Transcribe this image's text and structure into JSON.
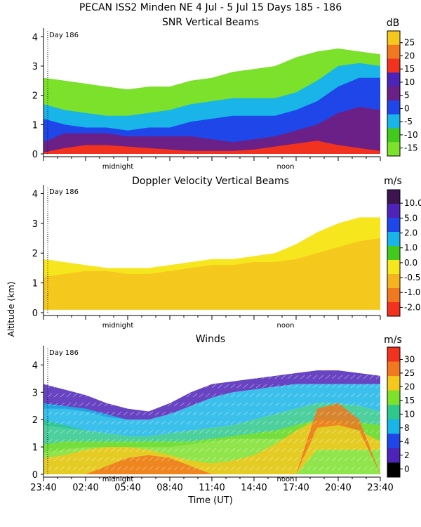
{
  "header": "PECAN ISS2 Minden NE    4 Jul -  5 Jul 15 Days 185 - 186",
  "day_marker": "Day 186",
  "xlabel": "Time (UT)",
  "ylabel": "Altitude (km)",
  "midnight_label": "midnight",
  "noon_label": "noon",
  "colors": {
    "lime": "#7be12b",
    "green": "#43c91e",
    "cyan": "#19b4e8",
    "blue": "#1f46e8",
    "indigo": "#4d23b8",
    "purple": "#6b2088",
    "red": "#f0321e",
    "orange": "#f0781e",
    "yellow": "#f5e61e",
    "gold": "#f5c81e"
  },
  "chart_data": [
    {
      "type": "heatmap",
      "title": "SNR Vertical Beams",
      "units": "dB",
      "ylim": [
        0,
        4.2
      ],
      "yticks": [
        0,
        1,
        2,
        3,
        4
      ],
      "colorbar": {
        "labels": [
          "25",
          "20",
          "15",
          "10",
          "5",
          "0",
          "-5",
          "-10",
          "-15"
        ],
        "colors": [
          "#f5c81e",
          "#f0781e",
          "#f0321e",
          "#4d23b8",
          "#6b2088",
          "#1f46e8",
          "#19b4e8",
          "#43c91e",
          "#7be12b"
        ]
      },
      "layers": [
        {
          "color": "#7be12b",
          "top": [
            2.6,
            2.5,
            2.4,
            2.3,
            2.2,
            2.3,
            2.3,
            2.5,
            2.6,
            2.8,
            2.9,
            3.0,
            3.3,
            3.5,
            3.6,
            3.5,
            3.4
          ],
          "bottom": [
            0,
            0,
            0,
            0,
            0,
            0,
            0,
            0,
            0,
            0,
            0,
            0,
            0,
            0,
            0,
            0,
            0
          ]
        },
        {
          "color": "#19b4e8",
          "top": [
            1.7,
            1.5,
            1.4,
            1.3,
            1.3,
            1.4,
            1.5,
            1.7,
            1.8,
            1.9,
            1.9,
            1.9,
            2.1,
            2.5,
            3.0,
            3.1,
            3.0
          ],
          "bottom": [
            0,
            0,
            0,
            0,
            0,
            0,
            0,
            0,
            0,
            0,
            0,
            0,
            0,
            0,
            0,
            0,
            0
          ]
        },
        {
          "color": "#1f46e8",
          "top": [
            1.2,
            1.0,
            0.9,
            0.9,
            0.8,
            0.9,
            0.9,
            1.1,
            1.2,
            1.3,
            1.3,
            1.3,
            1.5,
            1.8,
            2.3,
            2.6,
            2.6
          ],
          "bottom": [
            0,
            0,
            0,
            0,
            0,
            0,
            0,
            0,
            0,
            0,
            0,
            0,
            0,
            0,
            0,
            0,
            0
          ]
        },
        {
          "color": "#6b2088",
          "top": [
            0.4,
            0.7,
            0.7,
            0.7,
            0.6,
            0.6,
            0.6,
            0.6,
            0.5,
            0.4,
            0.5,
            0.6,
            0.8,
            1.0,
            1.4,
            1.6,
            1.5
          ],
          "bottom": [
            0,
            0,
            0,
            0,
            0,
            0,
            0,
            0,
            0,
            0,
            0,
            0,
            0,
            0,
            0,
            0,
            0
          ]
        },
        {
          "color": "#f0321e",
          "top": [
            0.05,
            0.2,
            0.3,
            0.3,
            0.25,
            0.2,
            0.15,
            0.1,
            0.1,
            0.1,
            0.15,
            0.25,
            0.35,
            0.45,
            0.3,
            0.2,
            0.1
          ],
          "bottom": [
            0,
            0,
            0,
            0,
            0,
            0,
            0,
            0,
            0,
            0,
            0,
            0,
            0,
            0,
            0,
            0,
            0
          ]
        }
      ]
    },
    {
      "type": "heatmap",
      "title": "Doppler Velocity Vertical Beams",
      "units": "m/s",
      "ylim": [
        0,
        4.2
      ],
      "yticks": [
        0,
        1,
        2,
        3,
        4
      ],
      "colorbar": {
        "labels": [
          "10.0",
          "5.0",
          "2.0",
          "1.0",
          "0.0",
          "-0.5",
          "-1.0",
          "-2.0"
        ],
        "colors": [
          "#3c1450",
          "#4d23b8",
          "#1f46e8",
          "#19b4e8",
          "#43c91e",
          "#f5e61e",
          "#f5b41e",
          "#f0781e",
          "#f0321e"
        ]
      },
      "layers": [
        {
          "color": "#f5e61e",
          "top": [
            1.8,
            1.7,
            1.6,
            1.5,
            1.5,
            1.5,
            1.6,
            1.7,
            1.8,
            1.8,
            1.9,
            2.0,
            2.3,
            2.7,
            3.0,
            3.2,
            3.2
          ],
          "bottom": [
            0.1,
            0.1,
            0.1,
            0.1,
            0.1,
            0.1,
            0.1,
            0.1,
            0.1,
            0.1,
            0.1,
            0.1,
            0.1,
            0.1,
            0.1,
            0.1,
            0.1
          ]
        },
        {
          "color": "#f5c81e",
          "top": [
            1.2,
            1.3,
            1.4,
            1.4,
            1.3,
            1.3,
            1.4,
            1.5,
            1.6,
            1.6,
            1.7,
            1.7,
            1.8,
            2.0,
            2.2,
            2.4,
            2.5
          ],
          "bottom": [
            0.1,
            0.1,
            0.1,
            0.1,
            0.1,
            0.1,
            0.1,
            0.1,
            0.1,
            0.1,
            0.1,
            0.1,
            0.1,
            0.1,
            0.1,
            0.1,
            0.1
          ]
        }
      ]
    },
    {
      "type": "barbs",
      "title": "Winds",
      "units": "m/s",
      "ylim": [
        0,
        4.6
      ],
      "yticks": [
        0,
        1,
        2,
        3,
        4
      ],
      "x_time_labels": [
        "23:40",
        "02:40",
        "05:40",
        "08:40",
        "11:40",
        "14:40",
        "17:40",
        "20:40",
        "23:40"
      ],
      "colorbar": {
        "labels": [
          "30",
          "25",
          "20",
          "15",
          "10",
          "8",
          "4",
          "2",
          "0"
        ],
        "colors": [
          "#f0321e",
          "#f0781e",
          "#f5c81e",
          "#7be12b",
          "#2ec88c",
          "#19b4e8",
          "#1f46e8",
          "#4d23b8",
          "#000000"
        ]
      },
      "layers": [
        {
          "color": "#4d23b8",
          "top": [
            3.3,
            3.1,
            2.9,
            2.6,
            2.4,
            2.3,
            2.6,
            3.0,
            3.3,
            3.4,
            3.5,
            3.6,
            3.7,
            3.8,
            3.8,
            3.7,
            3.6
          ],
          "bottom": [
            2.4,
            2.4,
            2.3,
            2.1,
            2.0,
            2.0,
            2.2,
            2.5,
            2.8,
            3.0,
            3.1,
            3.2,
            3.3,
            3.3,
            3.3,
            3.3,
            3.3
          ]
        },
        {
          "color": "#19b4e8",
          "top": [
            2.6,
            2.5,
            2.4,
            2.2,
            2.0,
            2.0,
            2.2,
            2.5,
            2.8,
            3.0,
            3.1,
            3.2,
            3.3,
            3.3,
            3.3,
            3.3,
            3.3
          ],
          "bottom": [
            1.8,
            1.7,
            1.6,
            1.5,
            1.4,
            1.4,
            1.5,
            1.6,
            1.7,
            1.8,
            2.0,
            2.2,
            2.4,
            2.6,
            2.6,
            2.5,
            2.3
          ]
        },
        {
          "color": "#2ec88c",
          "top": [
            2.0,
            1.8,
            1.6,
            1.5,
            1.4,
            1.4,
            1.5,
            1.6,
            1.7,
            1.8,
            2.0,
            2.2,
            2.4,
            2.6,
            2.6,
            2.5,
            2.3
          ],
          "bottom": [
            0.8,
            0.9,
            1.0,
            1.0,
            1.0,
            1.0,
            1.0,
            1.1,
            1.2,
            1.3,
            1.3,
            1.3,
            1.3,
            1.3,
            1.3,
            1.3,
            1.2
          ]
        },
        {
          "color": "#7be12b",
          "top": [
            1.1,
            1.2,
            1.2,
            1.2,
            1.2,
            1.2,
            1.2,
            1.2,
            1.3,
            1.4,
            1.5,
            1.6,
            1.8,
            2.0,
            2.0,
            1.9,
            1.8
          ],
          "bottom": [
            0,
            0,
            0,
            0,
            0,
            0,
            0,
            0,
            0,
            0,
            0,
            0,
            0,
            0,
            0,
            0,
            0
          ]
        },
        {
          "color": "#f5c81e",
          "top": [
            0.6,
            0.7,
            0.9,
            1.0,
            1.0,
            0.9,
            0.7,
            0.5,
            0.4,
            0.5,
            0.7,
            1.1,
            1.6,
            2.0,
            1.9,
            1.6,
            1.2
          ],
          "bottom": [
            0,
            0,
            0,
            0,
            0,
            0,
            0,
            0,
            0,
            0,
            0,
            0,
            0,
            0.9,
            0.9,
            0.9,
            0.9
          ]
        },
        {
          "color": "#f0781e",
          "top": [
            0,
            0,
            0,
            0.3,
            0.6,
            0.7,
            0.6,
            0.3,
            0,
            0,
            0,
            0,
            0,
            2.4,
            2.6,
            2.0,
            0
          ],
          "bottom": [
            0,
            0,
            0,
            0,
            0,
            0,
            0,
            0,
            0,
            0,
            0,
            0,
            0,
            1.7,
            1.8,
            1.6,
            0
          ]
        }
      ]
    }
  ]
}
